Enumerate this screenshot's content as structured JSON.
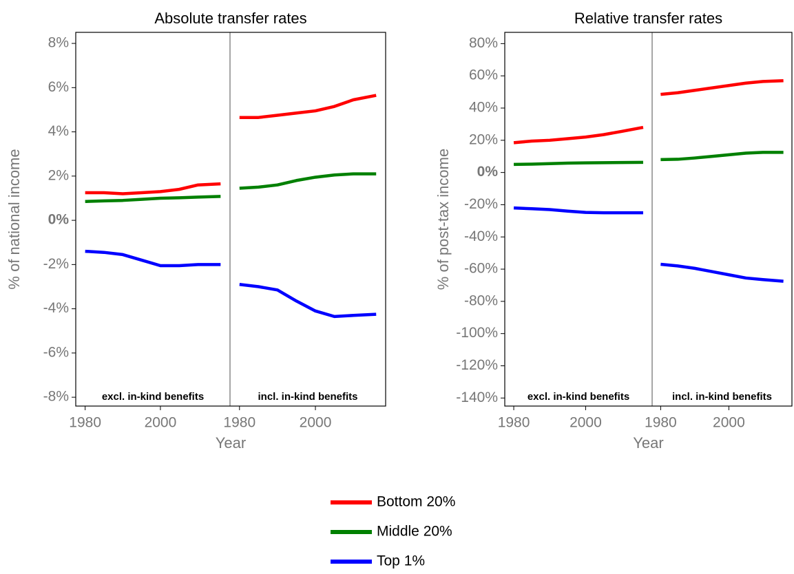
{
  "chart_data": [
    {
      "type": "line",
      "title": "Absolute transfer rates",
      "xlabel": "Year",
      "ylabel": "% of national income",
      "ylim": [
        -8.4,
        8.5
      ],
      "yticks": [
        {
          "value": -8,
          "label": "-8%"
        },
        {
          "value": -6,
          "label": "-6%"
        },
        {
          "value": -4,
          "label": "-4%"
        },
        {
          "value": -2,
          "label": "-2%"
        },
        {
          "value": 0,
          "label": "0%"
        },
        {
          "value": 2,
          "label": "2%"
        },
        {
          "value": 4,
          "label": "4%"
        },
        {
          "value": 6,
          "label": "6%"
        },
        {
          "value": 8,
          "label": "8%"
        }
      ],
      "xlim": [
        1977.5,
        2018.5
      ],
      "xticks": [
        1980,
        2000
      ],
      "panels": [
        {
          "label": "excl. in-kind benefits",
          "x": [
            1980,
            1985,
            1990,
            1995,
            2000,
            2005,
            2010,
            2016
          ],
          "series": [
            {
              "name": "Bottom 20%",
              "color": "#ff0000",
              "values": [
                1.25,
                1.25,
                1.2,
                1.25,
                1.3,
                1.4,
                1.6,
                1.65
              ]
            },
            {
              "name": "Middle 20%",
              "color": "#008000",
              "values": [
                0.85,
                0.88,
                0.9,
                0.95,
                1.0,
                1.02,
                1.05,
                1.08
              ]
            },
            {
              "name": "Top 1%",
              "color": "#0000ff",
              "values": [
                -1.4,
                -1.45,
                -1.55,
                -1.8,
                -2.05,
                -2.05,
                -2.0,
                -2.0
              ]
            }
          ]
        },
        {
          "label": "incl. in-kind benefits",
          "x": [
            1980,
            1985,
            1990,
            1995,
            2000,
            2005,
            2010,
            2016
          ],
          "series": [
            {
              "name": "Bottom 20%",
              "color": "#ff0000",
              "values": [
                4.65,
                4.65,
                4.75,
                4.85,
                4.95,
                5.15,
                5.45,
                5.65
              ]
            },
            {
              "name": "Middle 20%",
              "color": "#008000",
              "values": [
                1.45,
                1.5,
                1.6,
                1.8,
                1.95,
                2.05,
                2.1,
                2.1
              ]
            },
            {
              "name": "Top 1%",
              "color": "#0000ff",
              "values": [
                -2.9,
                -3.0,
                -3.15,
                -3.65,
                -4.1,
                -4.35,
                -4.3,
                -4.25
              ]
            }
          ]
        }
      ]
    },
    {
      "type": "line",
      "title": "Relative transfer rates",
      "xlabel": "Year",
      "ylabel": "% of post-tax income",
      "ylim": [
        -145,
        87
      ],
      "yticks": [
        {
          "value": -140,
          "label": "-140%"
        },
        {
          "value": -120,
          "label": "-120%"
        },
        {
          "value": -100,
          "label": "-100%"
        },
        {
          "value": -80,
          "label": "-80%"
        },
        {
          "value": -60,
          "label": "-60%"
        },
        {
          "value": -40,
          "label": "-40%"
        },
        {
          "value": -20,
          "label": "-20%"
        },
        {
          "value": 0,
          "label": "0%"
        },
        {
          "value": 20,
          "label": "20%"
        },
        {
          "value": 40,
          "label": "40%"
        },
        {
          "value": 60,
          "label": "60%"
        },
        {
          "value": 80,
          "label": "80%"
        }
      ],
      "xlim": [
        1977.5,
        2018.5
      ],
      "xticks": [
        1980,
        2000
      ],
      "panels": [
        {
          "label": "excl. in-kind benefits",
          "x": [
            1980,
            1985,
            1990,
            1995,
            2000,
            2005,
            2010,
            2016
          ],
          "series": [
            {
              "name": "Bottom 20%",
              "color": "#ff0000",
              "values": [
                18.5,
                19.5,
                20,
                21,
                22,
                23.5,
                25.5,
                28
              ]
            },
            {
              "name": "Middle 20%",
              "color": "#008000",
              "values": [
                5,
                5.2,
                5.5,
                5.8,
                6,
                6.1,
                6.2,
                6.3
              ]
            },
            {
              "name": "Top 1%",
              "color": "#0000ff",
              "values": [
                -22,
                -22.5,
                -23,
                -24,
                -24.8,
                -25,
                -25,
                -25
              ]
            }
          ]
        },
        {
          "label": "incl. in-kind benefits",
          "x": [
            1980,
            1985,
            1990,
            1995,
            2000,
            2005,
            2010,
            2016
          ],
          "series": [
            {
              "name": "Bottom 20%",
              "color": "#ff0000",
              "values": [
                48.5,
                49.5,
                51,
                52.5,
                54,
                55.5,
                56.5,
                57
              ]
            },
            {
              "name": "Middle 20%",
              "color": "#008000",
              "values": [
                8,
                8.2,
                9,
                10,
                11,
                12,
                12.5,
                12.5
              ]
            },
            {
              "name": "Top 1%",
              "color": "#0000ff",
              "values": [
                -57,
                -58,
                -59.5,
                -61.5,
                -63.5,
                -65.5,
                -66.5,
                -67.5
              ]
            }
          ]
        }
      ]
    }
  ]
}
